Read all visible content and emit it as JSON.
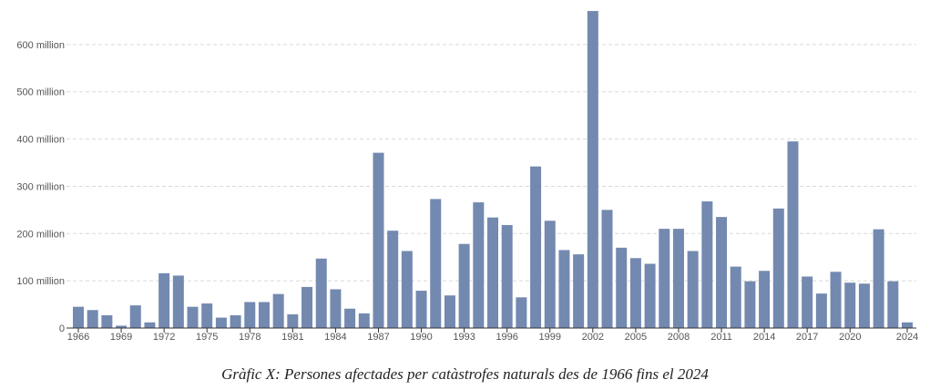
{
  "caption": "Gràfic X: Persones afectades per catàstrofes naturals des de 1966 fins el 2024",
  "chart_data": {
    "type": "bar",
    "x": [
      1966,
      1967,
      1968,
      1969,
      1970,
      1971,
      1972,
      1973,
      1974,
      1975,
      1976,
      1977,
      1978,
      1979,
      1980,
      1981,
      1982,
      1983,
      1984,
      1985,
      1986,
      1987,
      1988,
      1989,
      1990,
      1991,
      1992,
      1993,
      1994,
      1995,
      1996,
      1997,
      1998,
      1999,
      2000,
      2001,
      2002,
      2003,
      2004,
      2005,
      2006,
      2007,
      2008,
      2009,
      2010,
      2011,
      2012,
      2013,
      2014,
      2015,
      2016,
      2017,
      2018,
      2019,
      2020,
      2021,
      2022,
      2023,
      2024
    ],
    "values": [
      45,
      38,
      27,
      5,
      48,
      12,
      116,
      111,
      45,
      52,
      22,
      27,
      55,
      55,
      72,
      29,
      87,
      147,
      82,
      41,
      31,
      371,
      206,
      163,
      79,
      273,
      69,
      178,
      266,
      234,
      218,
      65,
      342,
      227,
      165,
      156,
      671,
      250,
      170,
      148,
      136,
      210,
      210,
      163,
      268,
      235,
      130,
      99,
      121,
      253,
      395,
      109,
      73,
      119,
      96,
      94,
      209,
      99,
      12
    ],
    "x_tick_labels": [
      "1966",
      "1969",
      "1972",
      "1975",
      "1978",
      "1981",
      "1984",
      "1987",
      "1990",
      "1993",
      "1996",
      "1999",
      "2002",
      "2005",
      "2008",
      "2011",
      "2014",
      "2017",
      "2020",
      "2024"
    ],
    "y_tick_labels": [
      "0",
      "100 million",
      "200 million",
      "300 million",
      "400 million",
      "500 million",
      "600 million"
    ],
    "y_ticks": [
      0,
      100,
      200,
      300,
      400,
      500,
      600
    ],
    "ylim": [
      0,
      675
    ],
    "unit": "million",
    "bar_color": "#7389b0",
    "grid": true
  }
}
